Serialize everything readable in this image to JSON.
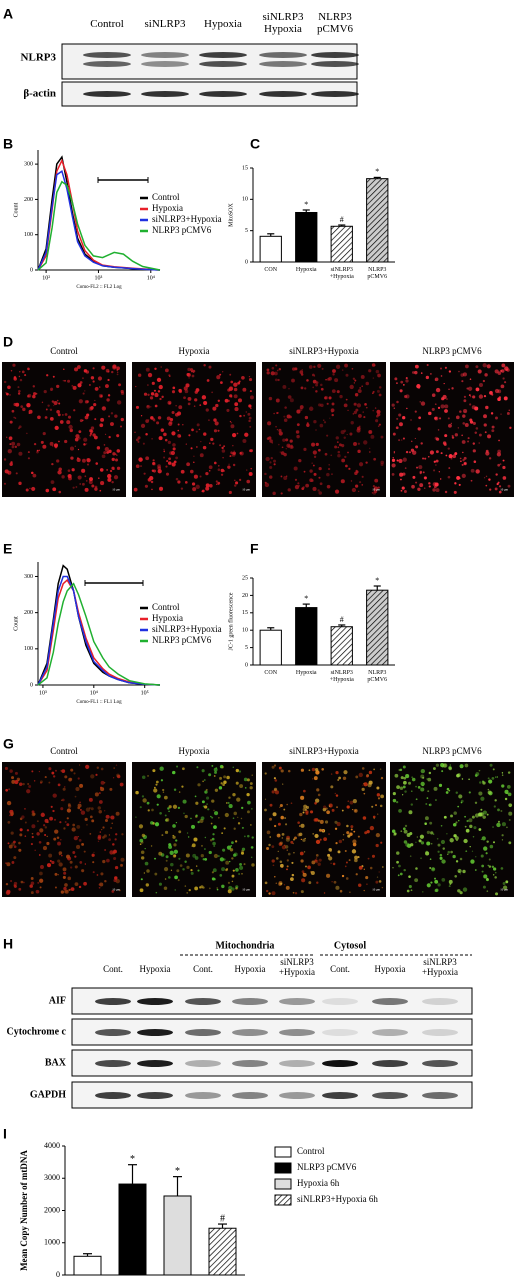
{
  "panels": [
    "A",
    "B",
    "C",
    "D",
    "E",
    "F",
    "G",
    "H",
    "I"
  ],
  "blot_a": {
    "columns": [
      [
        "Control"
      ],
      [
        "siNLRP3"
      ],
      [
        "Hypoxia"
      ],
      [
        "siNLRP3",
        "Hypoxia"
      ],
      [
        "NLRP3",
        "pCMV6"
      ]
    ],
    "rows": [
      "NLRP3",
      "β-actin"
    ]
  },
  "micrographs_d": {
    "titles": [
      "Control",
      "Hypoxia",
      "siNLRP3+Hypoxia",
      "NLRP3 pCMV6"
    ],
    "scale_bar": "10 μm"
  },
  "micrographs_g": {
    "titles": [
      "Control",
      "Hypoxia",
      "siNLRP3+Hypoxia",
      "NLRP3 pCMV6"
    ],
    "scale_bar": "10 μm"
  },
  "blot_h": {
    "groups": [
      "Mitochondria",
      "Cytosol"
    ],
    "columns": [
      [
        "Cont."
      ],
      [
        "Hypoxia"
      ],
      [
        "Cont."
      ],
      [
        "Hypoxia"
      ],
      [
        "siNLRP3",
        "+Hypoxia"
      ],
      [
        "Cont."
      ],
      [
        "Hypoxia"
      ],
      [
        "siNLRP3",
        "+Hypoxia"
      ]
    ],
    "rows": [
      "AIF",
      "Cytochrome c",
      "BAX",
      "GAPDH"
    ]
  },
  "chart_data": [
    {
      "type": "line",
      "ylabel": "Count",
      "xlabel": "Como-FL2 :: FL2 Log",
      "xlog": true,
      "x": [
        70,
        100,
        130,
        160,
        200,
        250,
        320,
        400,
        550,
        800,
        1200,
        2000,
        3000,
        4500,
        7000,
        15000
      ],
      "xlim": [
        70,
        15000
      ],
      "xticks": [
        {
          "value": 100,
          "label": "10²"
        },
        {
          "value": 1000,
          "label": "10³"
        },
        {
          "value": 10000,
          "label": "10⁴"
        }
      ],
      "ylim": [
        0,
        340
      ],
      "yticks": [
        0,
        100,
        200,
        300
      ],
      "series": [
        {
          "name": "Control",
          "color": "#000000",
          "values": [
            0,
            60,
            200,
            300,
            320,
            250,
            160,
            90,
            45,
            25,
            12,
            8,
            6,
            4,
            2,
            0
          ]
        },
        {
          "name": "Hypoxia",
          "color": "#e8202a",
          "values": [
            0,
            40,
            170,
            280,
            310,
            270,
            190,
            110,
            55,
            28,
            14,
            9,
            7,
            5,
            3,
            0
          ]
        },
        {
          "name": "siNLRP3+Hypoxia",
          "color": "#2030e0",
          "values": [
            0,
            50,
            180,
            270,
            280,
            230,
            150,
            80,
            40,
            22,
            12,
            8,
            6,
            4,
            2,
            0
          ]
        },
        {
          "name": "NLRP3 pCMV6",
          "color": "#20b030",
          "values": [
            0,
            20,
            120,
            220,
            250,
            240,
            190,
            130,
            70,
            40,
            35,
            50,
            45,
            25,
            10,
            0
          ]
        }
      ]
    },
    {
      "type": "bar",
      "ylabel": "MitoSOX",
      "categories": [
        [
          "CON"
        ],
        [
          "Hypoxia"
        ],
        [
          "siNLRP3",
          "+Hypoxia"
        ],
        [
          "NLRP3",
          "pCMV6"
        ]
      ],
      "values": [
        4.1,
        7.9,
        5.7,
        13.3
      ],
      "errors": [
        0.4,
        0.4,
        0.2,
        0.2
      ],
      "annotations": [
        null,
        "*",
        "#",
        "*"
      ],
      "colors": [
        "#ffffff",
        "#000000",
        "#ffffff",
        "#cccccc"
      ],
      "patterns": [
        "none",
        "none",
        "hatch",
        "hatch"
      ],
      "ylim": [
        0,
        15
      ],
      "yticks": [
        0,
        5,
        10,
        15
      ]
    },
    {
      "type": "line",
      "ylabel": "Count",
      "xlabel": "Como-FL1 :: FL1 Log",
      "xlog": true,
      "x": [
        800,
        1200,
        1600,
        2000,
        2500,
        3000,
        4000,
        5000,
        7000,
        10000,
        15000,
        20000,
        30000,
        50000,
        100000,
        200000
      ],
      "xlim": [
        800,
        200000
      ],
      "xticks": [
        {
          "value": 1000,
          "label": "10³"
        },
        {
          "value": 10000,
          "label": "10⁴"
        },
        {
          "value": 100000,
          "label": "10⁵"
        }
      ],
      "ylim": [
        0,
        340
      ],
      "yticks": [
        0,
        100,
        200,
        300
      ],
      "series": [
        {
          "name": "Control",
          "color": "#000000",
          "values": [
            0,
            60,
            180,
            280,
            330,
            320,
            260,
            190,
            110,
            60,
            35,
            25,
            15,
            6,
            2,
            0
          ]
        },
        {
          "name": "Hypoxia",
          "color": "#e8202a",
          "values": [
            0,
            40,
            150,
            240,
            280,
            290,
            260,
            200,
            130,
            75,
            45,
            30,
            18,
            8,
            2,
            0
          ]
        },
        {
          "name": "siNLRP3+Hypoxia",
          "color": "#2030e0",
          "values": [
            0,
            50,
            170,
            260,
            300,
            300,
            260,
            190,
            120,
            65,
            40,
            25,
            15,
            6,
            2,
            0
          ]
        },
        {
          "name": "NLRP3 pCMV6",
          "color": "#20b030",
          "values": [
            0,
            20,
            90,
            170,
            230,
            260,
            280,
            250,
            190,
            120,
            75,
            50,
            30,
            12,
            3,
            0
          ]
        }
      ]
    },
    {
      "type": "bar",
      "ylabel": "JC-1 green fluorescence",
      "categories": [
        [
          "CON"
        ],
        [
          "Hypoxia"
        ],
        [
          "siNLRP3",
          "+Hypoxia"
        ],
        [
          "NLRP3",
          "pCMV6"
        ]
      ],
      "values": [
        10,
        16.5,
        11,
        21.5
      ],
      "errors": [
        0.7,
        1,
        0.5,
        1.2
      ],
      "annotations": [
        null,
        "*",
        "#",
        "*"
      ],
      "colors": [
        "#ffffff",
        "#000000",
        "#ffffff",
        "#cccccc"
      ],
      "patterns": [
        "none",
        "none",
        "hatch",
        "hatch"
      ],
      "ylim": [
        0,
        25
      ],
      "yticks": [
        0,
        5,
        10,
        15,
        20,
        25
      ]
    },
    {
      "type": "bar",
      "ylabel": "Mean Copy Number of mtDNA",
      "ylim": [
        0,
        4000
      ],
      "yticks": [
        0,
        1000,
        2000,
        3000,
        4000
      ],
      "series": [
        {
          "name": "Control",
          "color": "#ffffff",
          "pattern": "none",
          "values": [
            580
          ],
          "errors": [
            80
          ],
          "annotations": [
            null
          ]
        },
        {
          "name": "NLRP3 pCMV6",
          "color": "#000000",
          "pattern": "none",
          "values": [
            2820
          ],
          "errors": [
            600
          ],
          "annotations": [
            "*"
          ]
        },
        {
          "name": "Hypoxia 6h",
          "color": "#dddddd",
          "pattern": "none",
          "values": [
            2450
          ],
          "errors": [
            600
          ],
          "annotations": [
            "*"
          ]
        },
        {
          "name": "siNLRP3+Hypoxia 6h",
          "color": "#ffffff",
          "pattern": "hatch",
          "values": [
            1450
          ],
          "errors": [
            130
          ],
          "annotations": [
            "#"
          ]
        }
      ]
    }
  ]
}
